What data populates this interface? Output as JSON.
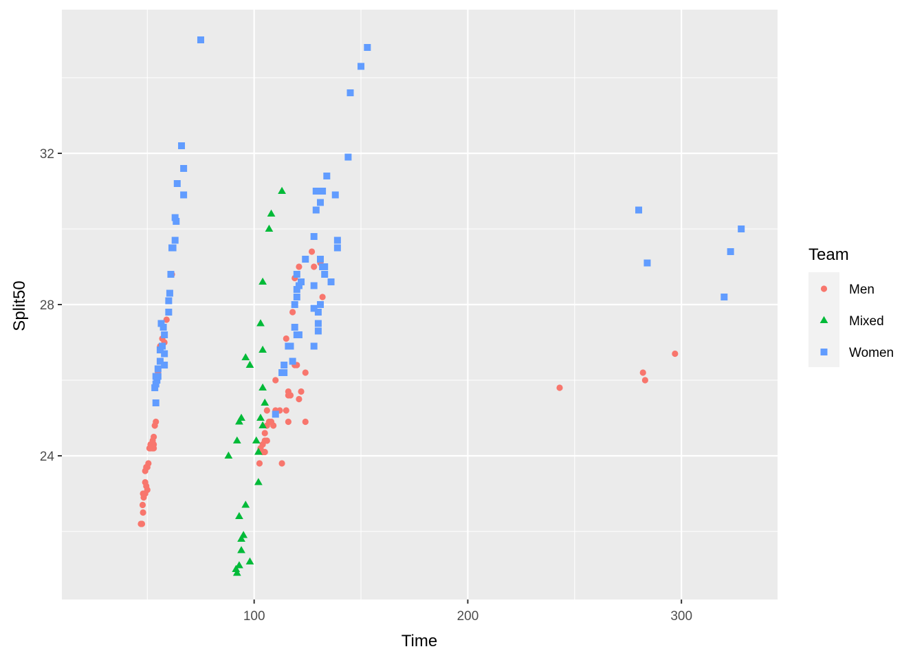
{
  "chart_data": {
    "type": "scatter",
    "xlabel": "Time",
    "ylabel": "Split50",
    "xlim": [
      10,
      345
    ],
    "ylim": [
      20.2,
      35.8
    ],
    "xticks": [
      100,
      200,
      300
    ],
    "yticks": [
      24,
      28,
      32
    ],
    "grid": true,
    "legend": {
      "title": "Team",
      "position": "right"
    },
    "colors": {
      "Men": "#F8766D",
      "Mixed": "#00BA38",
      "Women": "#619CFF",
      "panel": "#EBEBEB",
      "grid": "#FFFFFF"
    },
    "series": [
      {
        "name": "Men",
        "shape": "circle",
        "points": [
          [
            47,
            22.2
          ],
          [
            47.5,
            22.2
          ],
          [
            48,
            22.5
          ],
          [
            47.8,
            22.7
          ],
          [
            48.3,
            22.9
          ],
          [
            48,
            23.0
          ],
          [
            49,
            23.0
          ],
          [
            49,
            23.3
          ],
          [
            49.5,
            23.2
          ],
          [
            50,
            23.1
          ],
          [
            49,
            23.6
          ],
          [
            49.5,
            23.7
          ],
          [
            50,
            23.7
          ],
          [
            50.5,
            23.8
          ],
          [
            51,
            24.2
          ],
          [
            51.5,
            24.2
          ],
          [
            52,
            24.3
          ],
          [
            52.5,
            24.2
          ],
          [
            51.5,
            24.3
          ],
          [
            52.5,
            24.4
          ],
          [
            53,
            24.5
          ],
          [
            53,
            24.3
          ],
          [
            53,
            24.2
          ],
          [
            53.5,
            24.8
          ],
          [
            54,
            24.9
          ],
          [
            54,
            25.4
          ],
          [
            55,
            26.2
          ],
          [
            56,
            26.9
          ],
          [
            57,
            27.1
          ],
          [
            58,
            27.0
          ],
          [
            57.5,
            27.4
          ],
          [
            59,
            27.6
          ],
          [
            60,
            28.1
          ],
          [
            61.5,
            28.8
          ],
          [
            102.5,
            23.8
          ],
          [
            103,
            24.2
          ],
          [
            104,
            24.1
          ],
          [
            105,
            24.1
          ],
          [
            104,
            24.3
          ],
          [
            105,
            24.4
          ],
          [
            106,
            24.4
          ],
          [
            105,
            24.6
          ],
          [
            106,
            24.8
          ],
          [
            107,
            24.9
          ],
          [
            108,
            24.9
          ],
          [
            109,
            24.8
          ],
          [
            110,
            25.2
          ],
          [
            112,
            25.2
          ],
          [
            106,
            25.2
          ],
          [
            113,
            23.8
          ],
          [
            110,
            26.0
          ],
          [
            115,
            25.2
          ],
          [
            116,
            24.9
          ],
          [
            116,
            25.6
          ],
          [
            116,
            25.7
          ],
          [
            117,
            25.6
          ],
          [
            119,
            26.4
          ],
          [
            120,
            26.4
          ],
          [
            121,
            25.5
          ],
          [
            122,
            25.7
          ],
          [
            124,
            24.9
          ],
          [
            124,
            26.2
          ],
          [
            115,
            27.1
          ],
          [
            118,
            27.8
          ],
          [
            119,
            28.7
          ],
          [
            121,
            29.0
          ],
          [
            127,
            29.4
          ],
          [
            128,
            29.0
          ],
          [
            131,
            29.1
          ],
          [
            132,
            28.2
          ],
          [
            243,
            25.8
          ],
          [
            282,
            26.2
          ],
          [
            283,
            26.0
          ],
          [
            297,
            26.7
          ]
        ]
      },
      {
        "name": "Mixed",
        "shape": "triangle",
        "points": [
          [
            88,
            24.0
          ],
          [
            91.5,
            21.0
          ],
          [
            92,
            20.9
          ],
          [
            93,
            21.1
          ],
          [
            93,
            22.4
          ],
          [
            92,
            24.4
          ],
          [
            93,
            24.9
          ],
          [
            94,
            25.0
          ],
          [
            94,
            21.5
          ],
          [
            94,
            21.8
          ],
          [
            95,
            21.9
          ],
          [
            96,
            22.7
          ],
          [
            98,
            21.2
          ],
          [
            96,
            26.6
          ],
          [
            98,
            26.4
          ],
          [
            101,
            24.4
          ],
          [
            102,
            24.1
          ],
          [
            102,
            23.3
          ],
          [
            103,
            25.0
          ],
          [
            104,
            24.8
          ],
          [
            104,
            25.8
          ],
          [
            105,
            25.4
          ],
          [
            103,
            27.5
          ],
          [
            104,
            26.8
          ],
          [
            104,
            28.6
          ],
          [
            107,
            30.0
          ],
          [
            108,
            30.4
          ],
          [
            113,
            31.0
          ]
        ]
      },
      {
        "name": "Women",
        "shape": "square",
        "points": [
          [
            75,
            35.0
          ],
          [
            54,
            25.4
          ],
          [
            53.5,
            25.8
          ],
          [
            54,
            25.9
          ],
          [
            54.5,
            26.0
          ],
          [
            55,
            26.1
          ],
          [
            54,
            26.1
          ],
          [
            55,
            26.3
          ],
          [
            56,
            26.5
          ],
          [
            56,
            26.8
          ],
          [
            57,
            26.9
          ],
          [
            58,
            26.7
          ],
          [
            58,
            26.4
          ],
          [
            56.5,
            27.5
          ],
          [
            57.5,
            27.4
          ],
          [
            58,
            27.2
          ],
          [
            60,
            27.8
          ],
          [
            60,
            28.1
          ],
          [
            60.5,
            28.3
          ],
          [
            61,
            28.8
          ],
          [
            62,
            29.5
          ],
          [
            61.5,
            29.5
          ],
          [
            63,
            29.7
          ],
          [
            63,
            30.3
          ],
          [
            63.5,
            30.2
          ],
          [
            64,
            31.2
          ],
          [
            66,
            32.2
          ],
          [
            67,
            31.6
          ],
          [
            67,
            30.9
          ],
          [
            110,
            25.1
          ],
          [
            113,
            26.2
          ],
          [
            114,
            26.4
          ],
          [
            114,
            26.2
          ],
          [
            116,
            26.9
          ],
          [
            117,
            26.9
          ],
          [
            118,
            26.5
          ],
          [
            119,
            27.4
          ],
          [
            120,
            27.2
          ],
          [
            121,
            27.2
          ],
          [
            119,
            28.0
          ],
          [
            120,
            28.2
          ],
          [
            120,
            28.4
          ],
          [
            121,
            28.5
          ],
          [
            122,
            28.6
          ],
          [
            120,
            28.8
          ],
          [
            128,
            26.9
          ],
          [
            128,
            27.9
          ],
          [
            130,
            27.3
          ],
          [
            130,
            27.5
          ],
          [
            130,
            27.8
          ],
          [
            131,
            28.0
          ],
          [
            128,
            28.5
          ],
          [
            124,
            29.2
          ],
          [
            128,
            29.8
          ],
          [
            131,
            29.2
          ],
          [
            132,
            29.0
          ],
          [
            133,
            28.8
          ],
          [
            133,
            29.0
          ],
          [
            136,
            28.6
          ],
          [
            139,
            29.5
          ],
          [
            139,
            29.7
          ],
          [
            129,
            30.5
          ],
          [
            131,
            30.7
          ],
          [
            129,
            31.0
          ],
          [
            132,
            31.0
          ],
          [
            134,
            31.4
          ],
          [
            138,
            30.9
          ],
          [
            144,
            31.9
          ],
          [
            145,
            33.6
          ],
          [
            150,
            34.3
          ],
          [
            153,
            34.8
          ],
          [
            280,
            30.5
          ],
          [
            284,
            29.1
          ],
          [
            320,
            28.2
          ],
          [
            323,
            29.4
          ],
          [
            328,
            30.0
          ]
        ]
      }
    ]
  }
}
